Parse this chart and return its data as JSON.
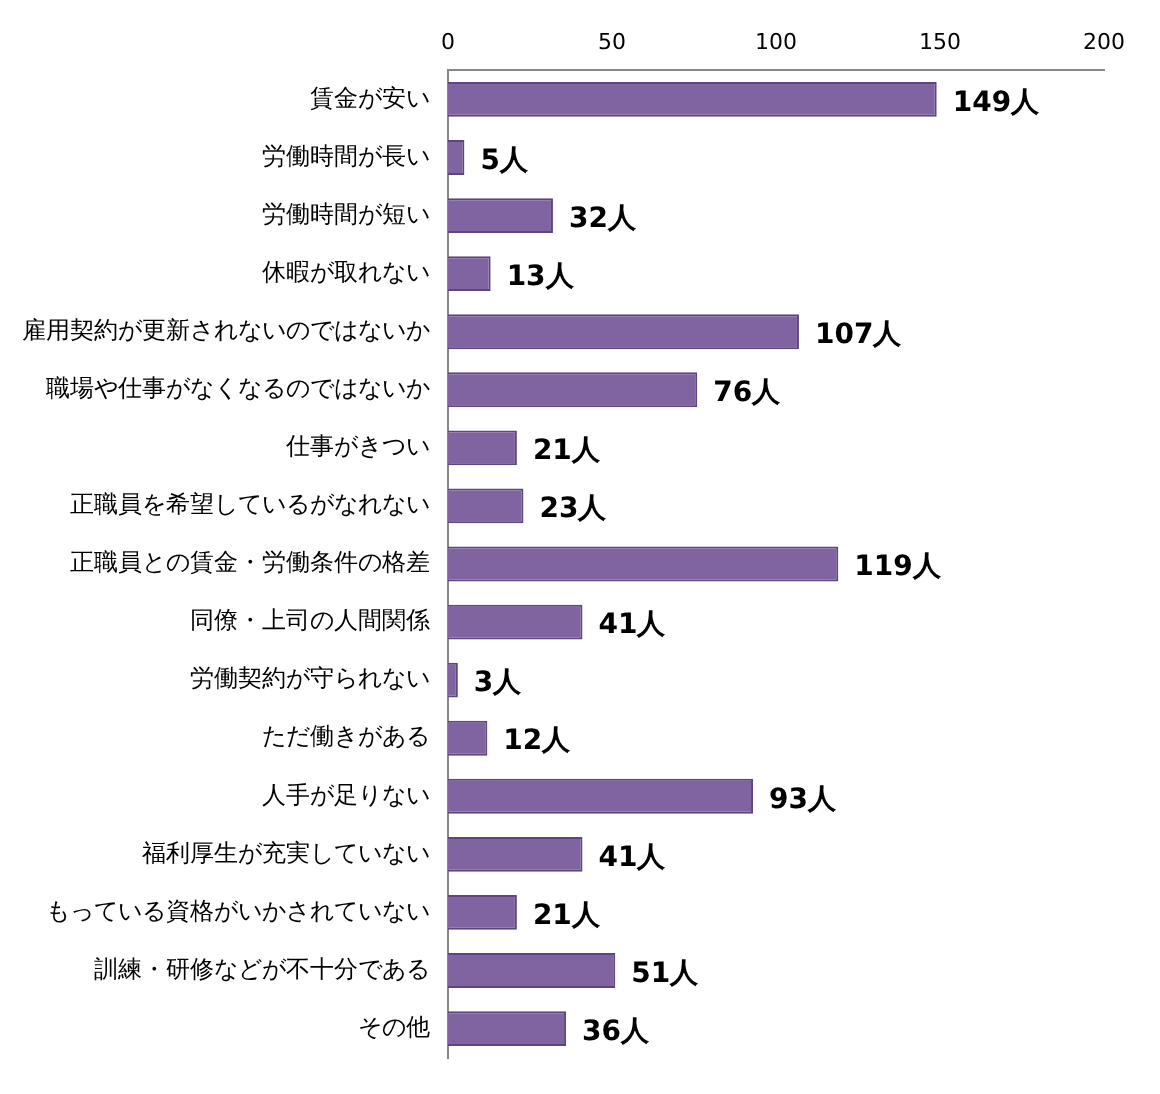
{
  "chart_data": {
    "type": "bar",
    "orientation": "horizontal",
    "categories": [
      "賃金が安い",
      "労働時間が長い",
      "労働時間が短い",
      "休暇が取れない",
      "雇用契約が更新されないのではないか",
      "職場や仕事がなくなるのではないか",
      "仕事がきつい",
      "正職員を希望しているがなれない",
      "正職員との賃金・労働条件の格差",
      "同僚・上司の人間関係",
      "労働契約が守られない",
      "ただ働きがある",
      "人手が足りない",
      "福利厚生が充実していない",
      "もっている資格がいかされていない",
      "訓練・研修などが不十分である",
      "その他"
    ],
    "values": [
      149,
      5,
      32,
      13,
      107,
      76,
      21,
      23,
      119,
      41,
      3,
      12,
      93,
      41,
      21,
      51,
      36
    ],
    "value_labels": [
      "149人",
      "5人",
      "32人",
      "13人",
      "107人",
      "76人",
      "21人",
      "23人",
      "119人",
      "41人",
      "3人",
      "12人",
      "93人",
      "41人",
      "21人",
      "51人",
      "36人"
    ],
    "color": "#8064a2",
    "xlim": [
      0,
      200
    ],
    "xticks": [
      0,
      50,
      100,
      150,
      200
    ]
  }
}
